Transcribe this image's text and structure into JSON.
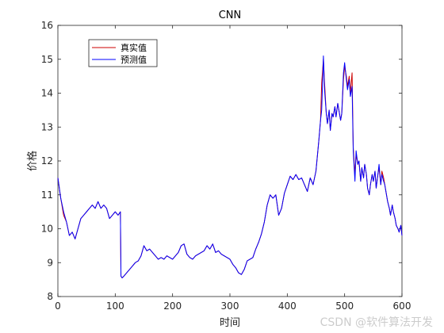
{
  "chart_data": {
    "type": "line",
    "title": "CNN",
    "xlabel": "时间",
    "ylabel": "价格",
    "xlim": [
      0,
      600
    ],
    "ylim": [
      8,
      16
    ],
    "xticks": [
      0,
      100,
      200,
      300,
      400,
      500,
      600
    ],
    "yticks": [
      8,
      9,
      10,
      11,
      12,
      13,
      14,
      15,
      16
    ],
    "grid": false,
    "legend_position": "top-left",
    "series": [
      {
        "name": "真实值",
        "color": "#cc0000",
        "x": [
          0,
          5,
          10,
          15,
          20,
          25,
          30,
          35,
          40,
          45,
          50,
          55,
          60,
          65,
          70,
          75,
          80,
          85,
          90,
          95,
          100,
          105,
          109,
          110,
          112,
          115,
          120,
          125,
          130,
          135,
          140,
          145,
          150,
          155,
          160,
          165,
          170,
          175,
          180,
          185,
          190,
          195,
          200,
          205,
          210,
          215,
          220,
          225,
          230,
          235,
          240,
          245,
          250,
          255,
          260,
          265,
          270,
          275,
          280,
          285,
          290,
          295,
          300,
          305,
          310,
          315,
          320,
          325,
          330,
          335,
          340,
          345,
          350,
          355,
          360,
          365,
          370,
          375,
          380,
          385,
          390,
          395,
          400,
          405,
          410,
          415,
          420,
          425,
          430,
          435,
          440,
          445,
          450,
          455,
          458,
          460,
          463,
          465,
          468,
          470,
          473,
          475,
          478,
          480,
          483,
          485,
          488,
          490,
          493,
          495,
          498,
          500,
          503,
          505,
          508,
          510,
          513,
          515,
          518,
          520,
          523,
          525,
          528,
          530,
          533,
          535,
          538,
          540,
          543,
          545,
          548,
          550,
          553,
          555,
          558,
          560,
          563,
          565,
          568,
          570,
          573,
          575,
          578,
          580,
          583,
          585,
          588,
          590,
          593,
          595,
          598,
          600
        ],
        "values": [
          11.5,
          10.9,
          10.4,
          10.2,
          9.8,
          9.9,
          9.7,
          10.0,
          10.3,
          10.4,
          10.5,
          10.6,
          10.7,
          10.6,
          10.8,
          10.6,
          10.7,
          10.6,
          10.3,
          10.4,
          10.5,
          10.4,
          10.5,
          8.6,
          8.55,
          8.6,
          8.7,
          8.8,
          8.9,
          9.0,
          9.05,
          9.2,
          9.5,
          9.35,
          9.4,
          9.3,
          9.2,
          9.1,
          9.15,
          9.1,
          9.2,
          9.15,
          9.1,
          9.2,
          9.3,
          9.5,
          9.55,
          9.25,
          9.15,
          9.1,
          9.2,
          9.25,
          9.3,
          9.35,
          9.5,
          9.4,
          9.55,
          9.3,
          9.35,
          9.25,
          9.2,
          9.15,
          9.1,
          8.95,
          8.85,
          8.7,
          8.65,
          8.8,
          9.05,
          9.1,
          9.15,
          9.4,
          9.6,
          9.85,
          10.2,
          10.7,
          11.0,
          10.9,
          11.0,
          10.4,
          10.6,
          11.05,
          11.3,
          11.55,
          11.45,
          11.6,
          11.45,
          11.5,
          11.3,
          11.1,
          11.5,
          11.3,
          11.7,
          12.6,
          13.2,
          14.3,
          15.0,
          14.3,
          13.4,
          13.1,
          13.5,
          12.9,
          13.4,
          13.3,
          13.6,
          13.3,
          13.7,
          13.5,
          13.2,
          13.4,
          14.4,
          14.8,
          14.5,
          14.2,
          14.5,
          14.0,
          14.6,
          12.4,
          11.6,
          12.2,
          11.9,
          12.0,
          11.4,
          11.8,
          11.5,
          11.9,
          11.6,
          11.2,
          11.0,
          11.3,
          11.6,
          11.4,
          11.7,
          11.2,
          11.6,
          11.8,
          11.3,
          11.7,
          11.5,
          11.3,
          11.0,
          10.8,
          10.6,
          10.4,
          10.7,
          10.5,
          10.3,
          10.1,
          10.0,
          9.9,
          10.1,
          9.8
        ]
      },
      {
        "name": "预测值",
        "color": "#0000ff",
        "x": [
          0,
          5,
          10,
          15,
          20,
          25,
          30,
          35,
          40,
          45,
          50,
          55,
          60,
          65,
          70,
          75,
          80,
          85,
          90,
          95,
          100,
          105,
          109,
          110,
          112,
          115,
          120,
          125,
          130,
          135,
          140,
          145,
          150,
          155,
          160,
          165,
          170,
          175,
          180,
          185,
          190,
          195,
          200,
          205,
          210,
          215,
          220,
          225,
          230,
          235,
          240,
          245,
          250,
          255,
          260,
          265,
          270,
          275,
          280,
          285,
          290,
          295,
          300,
          305,
          310,
          315,
          320,
          325,
          330,
          335,
          340,
          345,
          350,
          355,
          360,
          365,
          370,
          375,
          380,
          385,
          390,
          395,
          400,
          405,
          410,
          415,
          420,
          425,
          430,
          435,
          440,
          445,
          450,
          455,
          458,
          460,
          463,
          465,
          468,
          470,
          473,
          475,
          478,
          480,
          483,
          485,
          488,
          490,
          493,
          495,
          498,
          500,
          503,
          505,
          508,
          510,
          513,
          515,
          518,
          520,
          523,
          525,
          528,
          530,
          533,
          535,
          538,
          540,
          543,
          545,
          548,
          550,
          553,
          555,
          558,
          560,
          563,
          565,
          568,
          570,
          573,
          575,
          578,
          580,
          583,
          585,
          588,
          590,
          593,
          595,
          598,
          600
        ],
        "values": [
          11.5,
          10.9,
          10.5,
          10.2,
          9.8,
          9.9,
          9.7,
          10.0,
          10.3,
          10.4,
          10.5,
          10.6,
          10.7,
          10.6,
          10.8,
          10.6,
          10.7,
          10.6,
          10.3,
          10.4,
          10.5,
          10.4,
          10.5,
          8.6,
          8.55,
          8.6,
          8.7,
          8.8,
          8.9,
          9.0,
          9.05,
          9.2,
          9.5,
          9.35,
          9.4,
          9.3,
          9.2,
          9.1,
          9.15,
          9.1,
          9.2,
          9.15,
          9.1,
          9.2,
          9.3,
          9.5,
          9.55,
          9.25,
          9.15,
          9.1,
          9.2,
          9.25,
          9.3,
          9.35,
          9.5,
          9.4,
          9.55,
          9.3,
          9.35,
          9.25,
          9.2,
          9.15,
          9.1,
          8.95,
          8.85,
          8.7,
          8.65,
          8.8,
          9.05,
          9.1,
          9.15,
          9.4,
          9.6,
          9.85,
          10.2,
          10.7,
          11.0,
          10.9,
          11.0,
          10.4,
          10.6,
          11.05,
          11.3,
          11.55,
          11.45,
          11.6,
          11.45,
          11.5,
          11.3,
          11.1,
          11.5,
          11.3,
          11.7,
          12.6,
          13.2,
          13.5,
          15.1,
          14.1,
          13.4,
          13.1,
          13.5,
          12.9,
          13.4,
          13.3,
          13.6,
          13.3,
          13.7,
          13.5,
          13.2,
          13.4,
          14.6,
          14.9,
          14.4,
          14.1,
          14.4,
          13.9,
          14.2,
          12.3,
          11.4,
          12.3,
          11.9,
          12.0,
          11.4,
          11.8,
          11.5,
          11.9,
          11.6,
          11.2,
          11.0,
          11.3,
          11.6,
          11.4,
          11.7,
          11.2,
          11.6,
          11.9,
          11.3,
          11.6,
          11.4,
          11.3,
          11.0,
          10.8,
          10.6,
          10.4,
          10.7,
          10.5,
          10.3,
          10.1,
          10.0,
          9.9,
          10.1,
          9.8
        ]
      }
    ]
  },
  "watermark": "CSDN @软件算法开发"
}
